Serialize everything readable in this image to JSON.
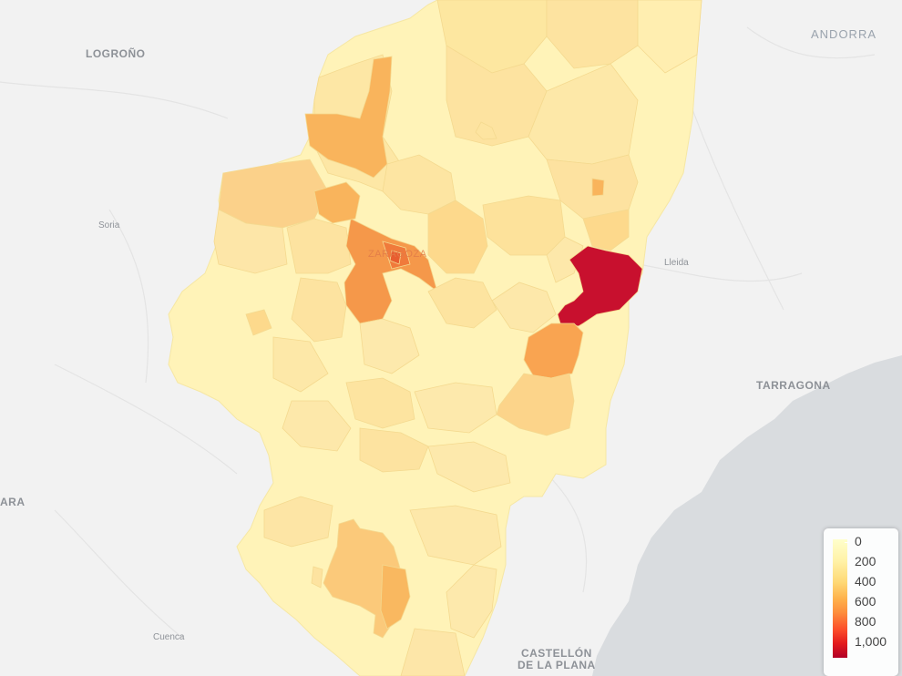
{
  "map": {
    "labels": {
      "andorra": "ANDORRA",
      "logrono": "LOGROÑO",
      "soria": "Soria",
      "lleida": "Lleida",
      "tarragona": "TARRAGONA",
      "ara": "ARA",
      "cuenca": "Cuenca",
      "castellon": "CASTELLÓN\nDE LA PLANA",
      "zaragoza": "ZARAGOZA"
    },
    "colors": {
      "background": "#f2f2f2",
      "sea": "#d8dbde",
      "region_base": "#fff3b8",
      "choropleth_low": "#ffffcc",
      "choropleth_high": "#b10026"
    }
  },
  "legend": {
    "labels": [
      "0",
      "200",
      "400",
      "600",
      "800",
      "1,000"
    ]
  }
}
